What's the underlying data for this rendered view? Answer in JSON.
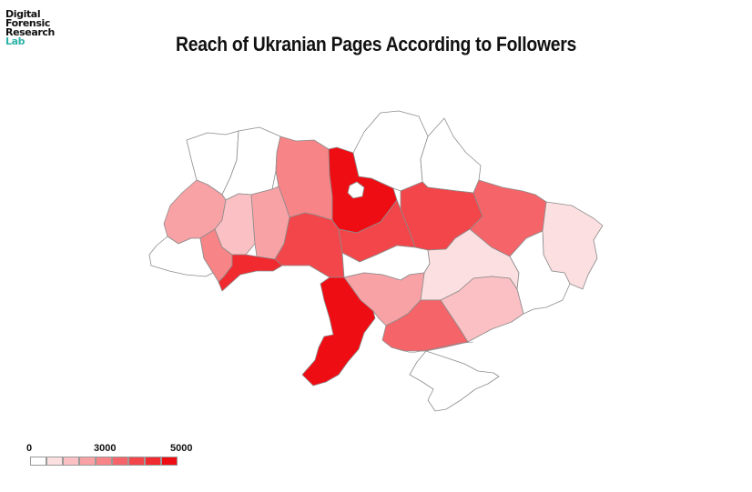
{
  "logo": {
    "line1": "Digital",
    "line2": "Forensic",
    "line3": "Research",
    "line4": "Lab"
  },
  "title": "Reach of Ukranian Pages According to Followers",
  "colors": {
    "c0": "#ffffff",
    "c1": "#fcdfe0",
    "c2": "#fbc0c3",
    "c3": "#f8a2a5",
    "c4": "#f78487",
    "c5": "#f46468",
    "c6": "#f2464a",
    "c7": "#f02a2f",
    "c8": "#ef0d14"
  },
  "legend": {
    "min": "0",
    "mid": "3000",
    "max": "5000",
    "steps": [
      "c0",
      "c1",
      "c2",
      "c3",
      "c4",
      "c5",
      "c6",
      "c7",
      "c8"
    ]
  },
  "regions": [
    {
      "name": "Volyn",
      "bin": "c0"
    },
    {
      "name": "Rivne",
      "bin": "c0"
    },
    {
      "name": "Zhytomyr",
      "bin": "c4"
    },
    {
      "name": "Kyiv",
      "bin": "c8"
    },
    {
      "name": "Chernihiv",
      "bin": "c0"
    },
    {
      "name": "Sumy",
      "bin": "c0"
    },
    {
      "name": "Lviv",
      "bin": "c3"
    },
    {
      "name": "Ternopil",
      "bin": "c2"
    },
    {
      "name": "Khmelnytskyi",
      "bin": "c3"
    },
    {
      "name": "Vinnytsia",
      "bin": "c6"
    },
    {
      "name": "Cherkasy",
      "bin": "c6"
    },
    {
      "name": "Poltava",
      "bin": "c6"
    },
    {
      "name": "Kharkiv",
      "bin": "c5"
    },
    {
      "name": "Luhansk",
      "bin": "c1"
    },
    {
      "name": "Zakarpattia",
      "bin": "c0"
    },
    {
      "name": "Ivano-Frankivsk",
      "bin": "c4"
    },
    {
      "name": "Chernivtsi",
      "bin": "c7"
    },
    {
      "name": "Kirovohrad",
      "bin": "c0"
    },
    {
      "name": "Dnipropetrovsk",
      "bin": "c1"
    },
    {
      "name": "Donetsk",
      "bin": "c0"
    },
    {
      "name": "Mykolaiv",
      "bin": "c3"
    },
    {
      "name": "Odesa",
      "bin": "c8"
    },
    {
      "name": "Kherson",
      "bin": "c5"
    },
    {
      "name": "Zaporizhzhia",
      "bin": "c2"
    },
    {
      "name": "Crimea",
      "bin": "c0"
    }
  ]
}
